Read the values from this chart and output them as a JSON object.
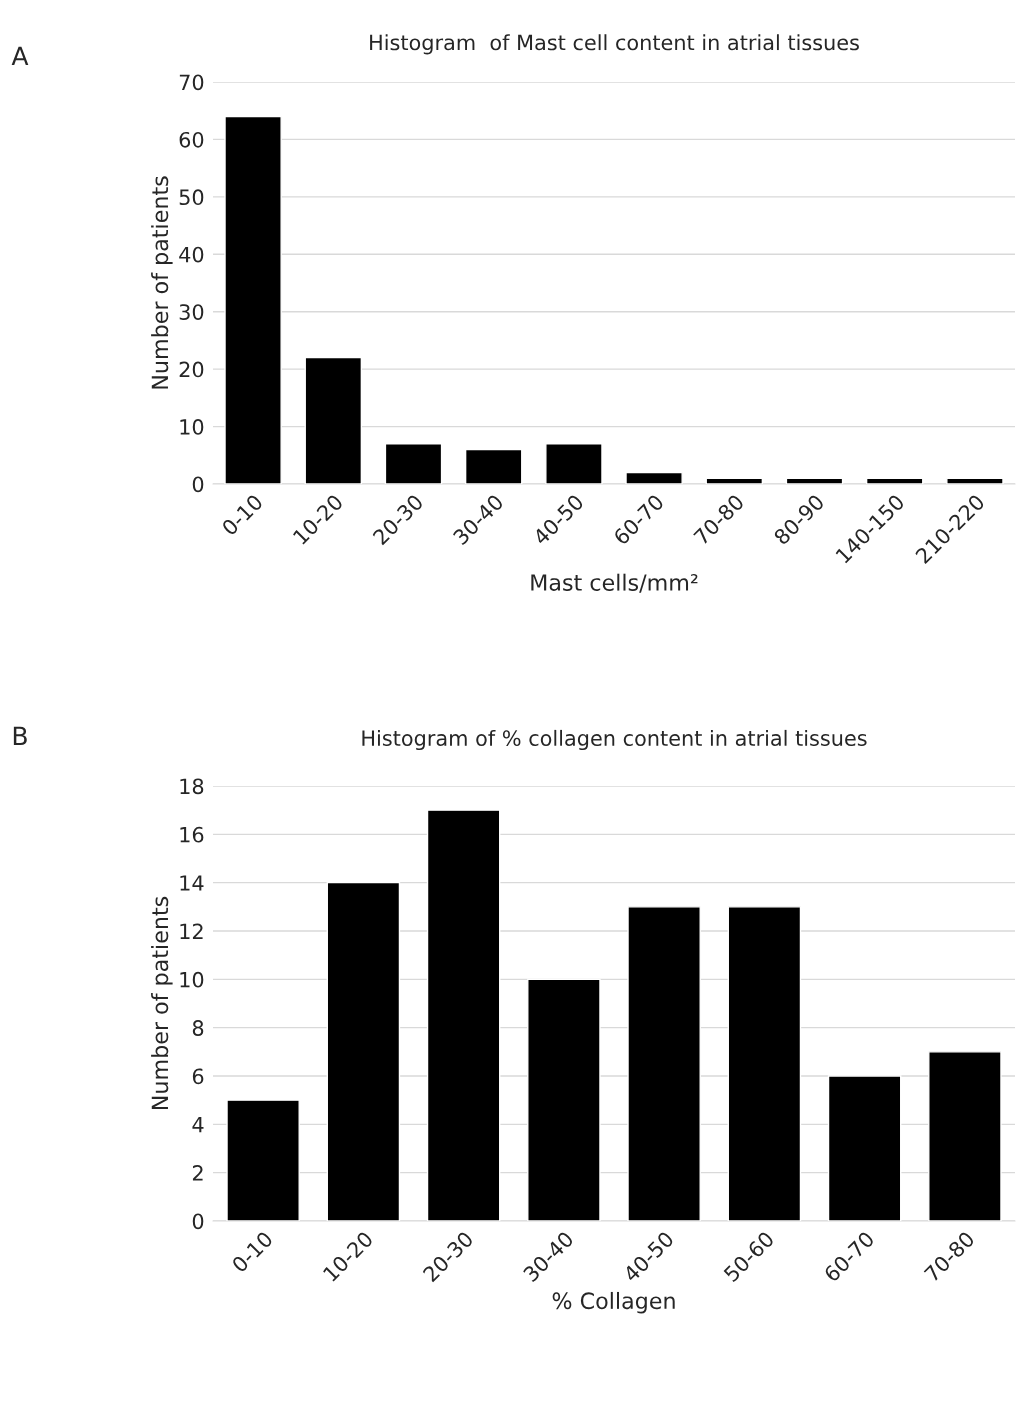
{
  "chart_data": [
    {
      "type": "bar",
      "title": "Histogram  of Mast cell content in atrial tissues",
      "xlabel": "Mast cells/mm²",
      "ylabel": "Number of patients",
      "annotations": [
        "A"
      ],
      "categories": [
        "0-10",
        "10-20",
        "20-30",
        "30-40",
        "40-50",
        "60-70",
        "70-80",
        "80-90",
        "140-150",
        "210-220"
      ],
      "values": [
        64,
        22,
        7,
        6,
        7,
        2,
        1,
        1,
        1,
        1
      ],
      "color": "#000000",
      "ylim": [
        0,
        70
      ],
      "yticks": [
        0,
        10,
        20,
        30,
        40,
        50,
        60,
        70
      ],
      "grid": "y"
    },
    {
      "type": "bar",
      "title": "Histogram of % collagen content in atrial tissues",
      "xlabel": "% Collagen",
      "ylabel": "Number of patients",
      "annotations": [
        "B"
      ],
      "categories": [
        "0-10",
        "10-20",
        "20-30",
        "30-40",
        "40-50",
        "50-60",
        "60-70",
        "70-80"
      ],
      "values": [
        5,
        14,
        17,
        10,
        13,
        13,
        6,
        7
      ],
      "color": "#000000",
      "ylim": [
        0,
        18
      ],
      "yticks": [
        0,
        2,
        4,
        6,
        8,
        10,
        12,
        14,
        16,
        18
      ],
      "grid": "y"
    }
  ]
}
